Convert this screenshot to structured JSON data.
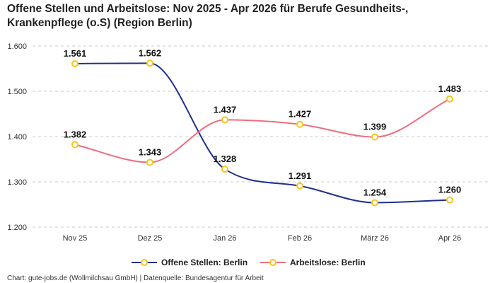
{
  "chart_data": {
    "type": "line",
    "title_line1": "Offene Stellen und Arbeitslose: Nov 2025 - Apr 2026 für Berufe Gesundheits-,",
    "title_line2": "Krankenpflege (o.S) (Region Berlin)",
    "categories": [
      "Nov 25",
      "Dez 25",
      "Jan 26",
      "Feb 26",
      "März 26",
      "Apr 26"
    ],
    "series": [
      {
        "name": "Offene Stellen: Berlin",
        "values": [
          1561,
          1562,
          1328,
          1291,
          1254,
          1260
        ],
        "labels": [
          "1.561",
          "1.562",
          "1.328",
          "1.291",
          "1.254",
          "1.260"
        ],
        "color": "#1f2f8f"
      },
      {
        "name": "Arbeitslose: Berlin",
        "values": [
          1382,
          1343,
          1437,
          1427,
          1399,
          1483
        ],
        "labels": [
          "1.382",
          "1.343",
          "1.437",
          "1.427",
          "1.399",
          "1.483"
        ],
        "color": "#f06c80"
      }
    ],
    "y_ticks": [
      1200,
      1300,
      1400,
      1500,
      1600
    ],
    "y_tick_labels": [
      "1.200",
      "1.300",
      "1.400",
      "1.500",
      "1.600"
    ],
    "ylim": [
      1200,
      1600
    ],
    "grid": true,
    "marker_color": "#f5c518",
    "legend_position": "bottom",
    "footer": "Chart: gute-jobs.de (Wollmilchsau GmbH) | Datenquelle: Bundesagentur für Arbeit"
  }
}
